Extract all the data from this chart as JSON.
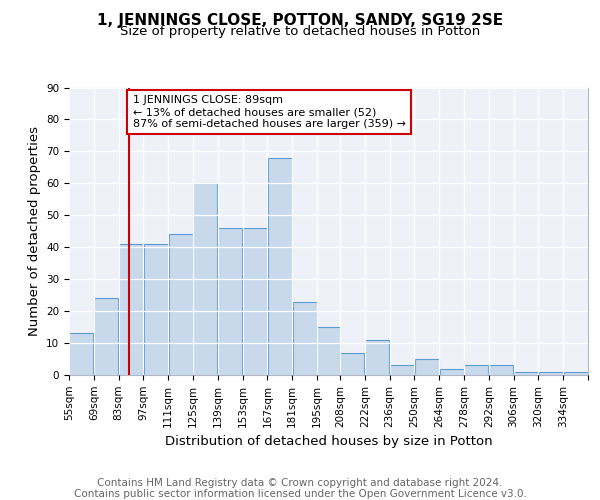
{
  "title": "1, JENNINGS CLOSE, POTTON, SANDY, SG19 2SE",
  "subtitle": "Size of property relative to detached houses in Potton",
  "xlabel": "Distribution of detached houses by size in Potton",
  "ylabel": "Number of detached properties",
  "bin_labels": [
    "55sqm",
    "69sqm",
    "83sqm",
    "97sqm",
    "111sqm",
    "125sqm",
    "139sqm",
    "153sqm",
    "167sqm",
    "181sqm",
    "195sqm",
    "208sqm",
    "222sqm",
    "236sqm",
    "250sqm",
    "264sqm",
    "278sqm",
    "292sqm",
    "306sqm",
    "320sqm",
    "334sqm"
  ],
  "bin_values": [
    13,
    24,
    41,
    41,
    44,
    60,
    46,
    46,
    68,
    23,
    15,
    7,
    11,
    3,
    5,
    2,
    3,
    3,
    1,
    1,
    1
  ],
  "bin_edges": [
    55,
    69,
    83,
    97,
    111,
    125,
    139,
    153,
    167,
    181,
    195,
    208,
    222,
    236,
    250,
    264,
    278,
    292,
    306,
    320,
    334,
    348
  ],
  "bar_color": "#c9d9ec",
  "bar_edge_color": "#5b9bd5",
  "property_size": 89,
  "red_line_color": "#cc0000",
  "annotation_text": "1 JENNINGS CLOSE: 89sqm\n← 13% of detached houses are smaller (52)\n87% of semi-detached houses are larger (359) →",
  "annotation_box_color": "#ffffff",
  "annotation_box_edge": "#cc0000",
  "ylim": [
    0,
    90
  ],
  "yticks": [
    0,
    10,
    20,
    30,
    40,
    50,
    60,
    70,
    80,
    90
  ],
  "footer_line1": "Contains HM Land Registry data © Crown copyright and database right 2024.",
  "footer_line2": "Contains public sector information licensed under the Open Government Licence v3.0.",
  "plot_background": "#eef2f8",
  "title_fontsize": 11,
  "subtitle_fontsize": 9.5,
  "axis_label_fontsize": 9.5,
  "tick_fontsize": 7.5,
  "footer_fontsize": 7.5,
  "annotation_fontsize": 8
}
